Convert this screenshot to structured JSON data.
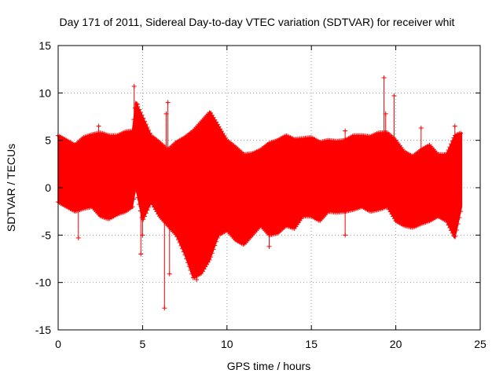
{
  "chart_data": {
    "type": "scatter",
    "title": "Day 171 of 2011, Sidereal Day-to-day VTEC variation (SDTVAR) for receiver whit",
    "xlabel": "GPS time / hours",
    "ylabel": "SDTVAR / TECUs",
    "xlim": [
      0,
      25
    ],
    "ylim": [
      -15,
      15
    ],
    "x_ticks": [
      0,
      5,
      10,
      15,
      20,
      25
    ],
    "y_ticks": [
      -15,
      -10,
      -5,
      0,
      5,
      10,
      15
    ],
    "x_tick_labels": [
      "0",
      "5",
      "10",
      "15",
      "20",
      "25"
    ],
    "y_tick_labels": [
      "-15",
      "-10",
      "-5",
      "0",
      "5",
      "10",
      "15"
    ],
    "grid": true,
    "marker": "plus",
    "series_color": "#ff0000",
    "series": [
      {
        "name": "SDTVAR",
        "band_hours": [
          0,
          0.5,
          1,
          1.5,
          2,
          2.5,
          3,
          3.5,
          4,
          4.4,
          4.6,
          5,
          5.5,
          6,
          6.5,
          7,
          7.5,
          8,
          8.5,
          9,
          9.5,
          10,
          10.5,
          11,
          11.5,
          12,
          12.5,
          13,
          13.5,
          14,
          14.5,
          15,
          15.5,
          16,
          16.5,
          17,
          17.5,
          18,
          18.5,
          19,
          19.5,
          20,
          20.5,
          21,
          21.5,
          22,
          22.5,
          23,
          23.5,
          23.9
        ],
        "upper_envelope": [
          5.5,
          5.0,
          4.5,
          5.3,
          5.6,
          5.8,
          5.5,
          5.5,
          5.9,
          6.0,
          9.0,
          7.5,
          5.5,
          4.8,
          4.0,
          4.8,
          5.3,
          6.0,
          7.0,
          8.0,
          6.5,
          5.0,
          4.3,
          3.5,
          3.6,
          4.0,
          4.7,
          5.0,
          5.5,
          5.1,
          5.2,
          5.3,
          4.8,
          5.0,
          4.9,
          5.0,
          5.5,
          5.5,
          5.4,
          5.8,
          5.8,
          5.0,
          3.8,
          3.3,
          4.0,
          4.5,
          3.5,
          3.5,
          5.5,
          5.8
        ],
        "lower_envelope": [
          -1.5,
          -2.0,
          -2.5,
          -2.2,
          -2.0,
          -3.0,
          -3.3,
          -2.8,
          -2.5,
          -2.0,
          0.0,
          -3.5,
          -1.5,
          -3.0,
          -4.0,
          -5.0,
          -7.0,
          -9.5,
          -9.0,
          -7.5,
          -5.0,
          -4.5,
          -5.5,
          -6.0,
          -5.0,
          -4.0,
          -5.0,
          -4.8,
          -4.0,
          -4.3,
          -3.0,
          -3.0,
          -3.5,
          -2.5,
          -2.6,
          -2.5,
          -2.3,
          -2.0,
          -2.5,
          -2.3,
          -2.0,
          -3.5,
          -4.0,
          -4.2,
          -3.8,
          -3.5,
          -3.0,
          -3.5,
          -5.3,
          -2.0
        ],
        "outliers": [
          {
            "x": 19.3,
            "y": 11.6
          },
          {
            "x": 19.9,
            "y": 9.7
          },
          {
            "x": 4.5,
            "y": 10.7
          },
          {
            "x": 4.7,
            "y": 8.8
          },
          {
            "x": 6.3,
            "y": -12.7
          },
          {
            "x": 6.6,
            "y": -9.1
          },
          {
            "x": 6.5,
            "y": 9.0
          },
          {
            "x": 6.4,
            "y": 7.8
          },
          {
            "x": 4.9,
            "y": -7.0
          },
          {
            "x": 5.0,
            "y": -5.0
          },
          {
            "x": 1.2,
            "y": -5.3
          },
          {
            "x": 2.4,
            "y": 6.5
          },
          {
            "x": 17.0,
            "y": 6.0
          },
          {
            "x": 19.4,
            "y": 7.8
          },
          {
            "x": 21.5,
            "y": 6.3
          },
          {
            "x": 17.0,
            "y": -5.0
          },
          {
            "x": 23.5,
            "y": 6.5
          },
          {
            "x": 12.5,
            "y": -6.2
          },
          {
            "x": 8.2,
            "y": -9.7
          }
        ]
      }
    ]
  }
}
